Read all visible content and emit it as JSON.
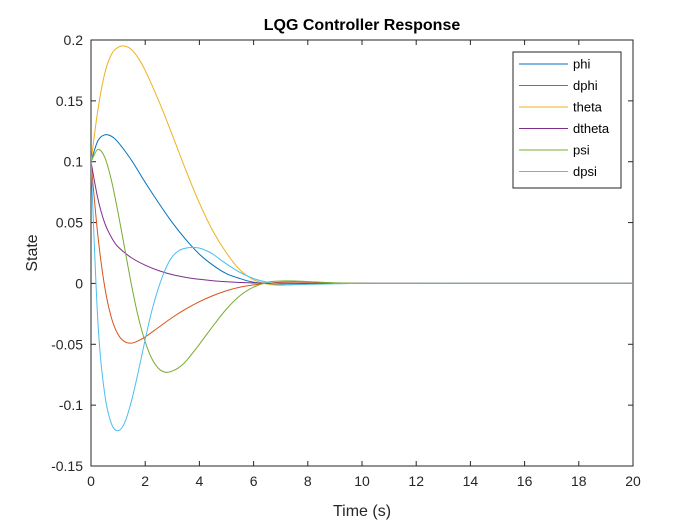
{
  "chart_data": {
    "type": "line",
    "title": "LQG Controller Response",
    "xlabel": "Time (s)",
    "ylabel": "State",
    "xlim": [
      0,
      20
    ],
    "ylim": [
      -0.15,
      0.2
    ],
    "xticks": [
      0,
      2,
      4,
      6,
      8,
      10,
      12,
      14,
      16,
      18,
      20
    ],
    "yticks": [
      -0.15,
      -0.1,
      -0.05,
      0,
      0.05,
      0.1,
      0.15,
      0.2
    ],
    "xtick_labels": [
      "0",
      "2",
      "4",
      "6",
      "8",
      "10",
      "12",
      "14",
      "16",
      "18",
      "20"
    ],
    "ytick_labels": [
      "-0.15",
      "-0.1",
      "-0.05",
      "0",
      "0.05",
      "0.1",
      "0.15",
      "0.2"
    ],
    "grid": false,
    "legend_position": "top-right",
    "series": [
      {
        "name": "phi",
        "color": "#0072BD",
        "x": [
          0,
          0.25,
          0.5,
          0.75,
          1,
          1.5,
          2,
          2.5,
          3,
          3.5,
          4,
          4.5,
          5,
          5.5,
          6,
          7,
          8,
          9,
          10,
          12,
          14,
          16,
          18,
          20
        ],
        "y": [
          0.1,
          0.117,
          0.122,
          0.121,
          0.116,
          0.101,
          0.083,
          0.066,
          0.05,
          0.036,
          0.024,
          0.015,
          0.008,
          0.004,
          0.001,
          -0.001,
          -0.0005,
          0,
          0,
          0,
          0,
          0,
          0,
          0
        ]
      },
      {
        "name": "dphi",
        "color": "#D95319",
        "x": [
          0,
          0.25,
          0.5,
          0.75,
          1,
          1.25,
          1.5,
          1.75,
          2,
          2.5,
          3,
          3.5,
          4,
          4.5,
          5,
          5.5,
          6,
          6.5,
          7,
          7.5,
          8,
          9,
          10,
          12,
          14,
          16,
          18,
          20
        ],
        "y": [
          0.1,
          0.04,
          -0.002,
          -0.028,
          -0.042,
          -0.048,
          -0.049,
          -0.047,
          -0.044,
          -0.036,
          -0.028,
          -0.021,
          -0.015,
          -0.01,
          -0.006,
          -0.003,
          -0.0012,
          0.0002,
          0.001,
          0.0012,
          0.001,
          0.0004,
          0.0001,
          0,
          0,
          0,
          0,
          0
        ]
      },
      {
        "name": "theta",
        "color": "#EDB120",
        "x": [
          0,
          0.25,
          0.5,
          0.75,
          1,
          1.25,
          1.5,
          1.75,
          2,
          2.5,
          3,
          3.5,
          4,
          4.5,
          5,
          5.5,
          6,
          6.5,
          7,
          7.5,
          8,
          9,
          10,
          12,
          14,
          16,
          18,
          20
        ],
        "y": [
          0.1,
          0.142,
          0.172,
          0.188,
          0.194,
          0.195,
          0.192,
          0.185,
          0.175,
          0.15,
          0.122,
          0.093,
          0.066,
          0.043,
          0.025,
          0.011,
          0.003,
          -0.0005,
          -0.0015,
          -0.001,
          -0.0005,
          0,
          0,
          0,
          0,
          0,
          0,
          0
        ]
      },
      {
        "name": "dtheta",
        "color": "#7E2F8E",
        "x": [
          0,
          0.25,
          0.5,
          0.75,
          1,
          1.5,
          2,
          2.5,
          3,
          3.5,
          4,
          4.5,
          5,
          5.5,
          6,
          7,
          8,
          9,
          10,
          12,
          14,
          16,
          18,
          20
        ],
        "y": [
          0.1,
          0.07,
          0.05,
          0.038,
          0.03,
          0.021,
          0.015,
          0.0105,
          0.0072,
          0.005,
          0.0034,
          0.0022,
          0.0014,
          0.0008,
          0.0004,
          0.0001,
          0,
          0,
          0,
          0,
          0,
          0,
          0,
          0
        ]
      },
      {
        "name": "psi",
        "color": "#77AC30",
        "x": [
          0,
          0.25,
          0.5,
          0.75,
          1,
          1.25,
          1.5,
          1.75,
          2,
          2.25,
          2.5,
          2.75,
          3,
          3.25,
          3.5,
          4,
          4.5,
          5,
          5.5,
          6,
          6.5,
          7,
          7.5,
          8,
          9,
          10,
          12,
          14,
          16,
          18,
          20
        ],
        "y": [
          0.1,
          0.11,
          0.104,
          0.085,
          0.058,
          0.028,
          -0.002,
          -0.028,
          -0.048,
          -0.062,
          -0.07,
          -0.073,
          -0.072,
          -0.069,
          -0.064,
          -0.05,
          -0.035,
          -0.021,
          -0.01,
          -0.003,
          0.001,
          0.002,
          0.002,
          0.0015,
          0.0005,
          0,
          0,
          0,
          0,
          0,
          0
        ]
      },
      {
        "name": "dpsi",
        "color": "#4DBEEE",
        "x": [
          0,
          0.25,
          0.5,
          0.75,
          1,
          1.25,
          1.5,
          1.75,
          2,
          2.25,
          2.5,
          2.75,
          3,
          3.25,
          3.5,
          3.75,
          4,
          4.25,
          4.5,
          5,
          5.5,
          6,
          6.5,
          7,
          7.5,
          8,
          9,
          10,
          12,
          14,
          16,
          18,
          20
        ],
        "y": [
          0.1,
          -0.03,
          -0.09,
          -0.115,
          -0.121,
          -0.114,
          -0.096,
          -0.072,
          -0.046,
          -0.022,
          -0.003,
          0.012,
          0.022,
          0.027,
          0.029,
          0.0295,
          0.029,
          0.027,
          0.024,
          0.016,
          0.009,
          0.004,
          0.001,
          -0.0005,
          -0.001,
          -0.0008,
          -0.0003,
          0,
          0,
          0,
          0,
          0,
          0
        ]
      }
    ]
  }
}
